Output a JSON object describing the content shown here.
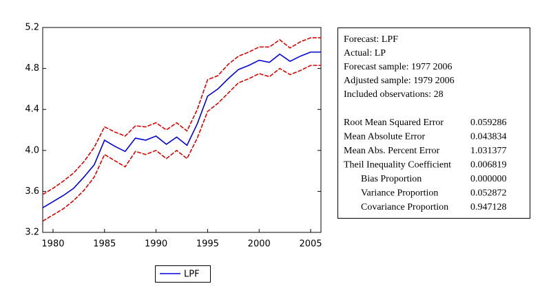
{
  "chart_data": {
    "type": "line",
    "x": [
      1979,
      1980,
      1981,
      1982,
      1983,
      1984,
      1985,
      1986,
      1987,
      1988,
      1989,
      1990,
      1991,
      1992,
      1993,
      1994,
      1995,
      1996,
      1997,
      1998,
      1999,
      2000,
      2001,
      2002,
      2003,
      2004,
      2005,
      2006
    ],
    "series": [
      {
        "name": "LPF",
        "color": "#0000dd",
        "values": [
          3.44,
          3.5,
          3.56,
          3.63,
          3.74,
          3.86,
          4.1,
          4.04,
          3.99,
          4.12,
          4.1,
          4.14,
          4.06,
          4.13,
          4.05,
          4.26,
          4.53,
          4.6,
          4.7,
          4.79,
          4.83,
          4.88,
          4.86,
          4.94,
          4.87,
          4.92,
          4.96,
          4.96
        ]
      },
      {
        "color": "#dd0000",
        "values": [
          3.57,
          3.63,
          3.7,
          3.78,
          3.89,
          4.03,
          4.23,
          4.18,
          4.14,
          4.24,
          4.23,
          4.27,
          4.2,
          4.27,
          4.19,
          4.4,
          4.69,
          4.73,
          4.84,
          4.92,
          4.96,
          5.01,
          5.01,
          5.08,
          5.0,
          5.06,
          5.1,
          5.1
        ]
      },
      {
        "color": "#dd0000",
        "values": [
          3.31,
          3.37,
          3.43,
          3.51,
          3.61,
          3.74,
          3.96,
          3.9,
          3.84,
          3.99,
          3.96,
          4.0,
          3.92,
          4.0,
          3.92,
          4.12,
          4.38,
          4.46,
          4.56,
          4.66,
          4.7,
          4.75,
          4.72,
          4.8,
          4.74,
          4.78,
          4.83,
          4.83
        ]
      }
    ],
    "xlim": [
      1979,
      2006
    ],
    "xticks": [
      1980,
      1985,
      1990,
      1995,
      2000,
      2005
    ],
    "ylim": [
      3.2,
      5.2
    ],
    "yticks": [
      3.2,
      3.6,
      {
        "value": 4,
        "label": "4.0"
      },
      4.4,
      4.8,
      5.2
    ]
  },
  "stats_box": {
    "header_lines": [
      "Forecast: LPF",
      "Actual: LP",
      "Forecast sample: 1977 2006",
      "Adjusted sample: 1979 2006",
      "Included observations: 28"
    ],
    "rows": [
      [
        "Root Mean Squared Error",
        "0.059286"
      ],
      [
        "Mean Absolute Error",
        "0.043834"
      ],
      [
        "Mean Abs. Percent Error",
        "1.031377"
      ],
      [
        "Theil Inequality Coefficient",
        "0.006819"
      ],
      [
        "Bias Proportion",
        "0.000000"
      ],
      [
        "Variance Proportion",
        "0.052872"
      ],
      [
        "Covariance Proportion",
        "0.947128"
      ]
    ]
  }
}
